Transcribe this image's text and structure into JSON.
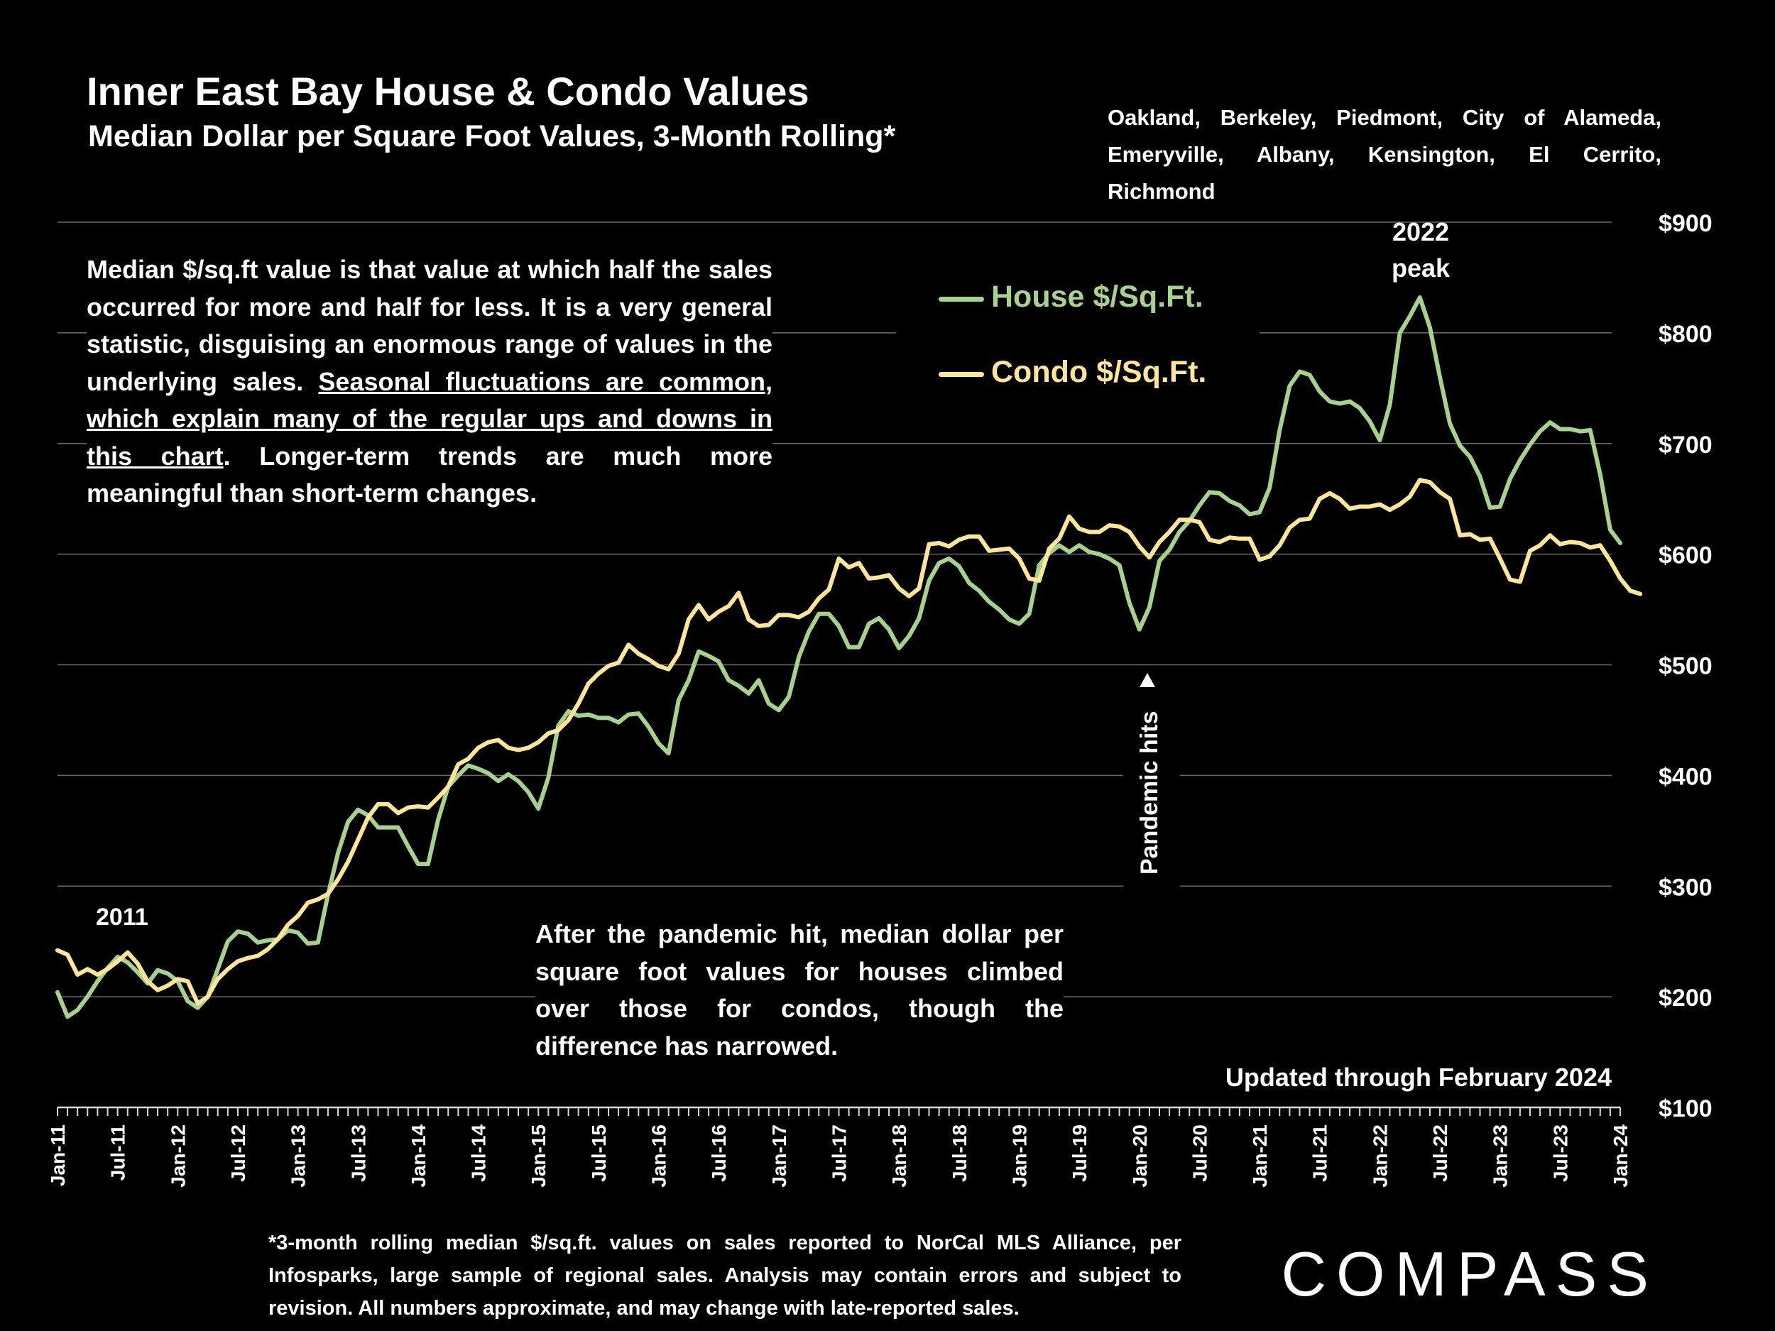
{
  "header": {
    "title": "Inner East Bay House & Condo Values",
    "subtitle": "Median Dollar per Square Foot Values, 3-Month Rolling*",
    "region_line1": "Oakland, Berkeley, Piedmont, City of Alameda,",
    "region_line2": "Emeryville, Albany, Kensington, El Cerrito, Richmond"
  },
  "notes": {
    "box1_part1": "Median $/sq.ft value is that value at which half the sales occurred for more and half for less. It is a very general statistic, disguising an enormous range of values in the underlying sales. ",
    "box1_underlined": "Seasonal fluctuations are common, which explain many of the regular ups and downs in this chart",
    "box1_part2": ". Longer-term trends are much more meaningful than short-term changes.",
    "box2": "After the pandemic hit, median dollar per square foot values for houses climbed over those for condos, though the difference has narrowed.",
    "updated": "Updated through February 2024",
    "footnote": "*3-month rolling median $/sq.ft. values on sales reported to NorCal MLS Alliance, per Infosparks, large sample of regional sales. Analysis may contain errors and subject to revision. All numbers approximate, and may change with late-reported sales.",
    "brand": "COMPASS"
  },
  "legend": {
    "house_label": "House $/Sq.Ft.",
    "condo_label": "Condo $/Sq.Ft."
  },
  "colors": {
    "background": "#000000",
    "house": "#a9d18e",
    "condo": "#ffe699",
    "text": "#ffffff",
    "grid": "#6b6b6b"
  },
  "chart_data": {
    "type": "line",
    "title": "Inner East Bay House & Condo Values",
    "xlabel": "",
    "ylabel": "",
    "ylim": [
      100,
      900
    ],
    "y_ticks": [
      "$100",
      "$200",
      "$300",
      "$400",
      "$500",
      "$600",
      "$700",
      "$800",
      "$900"
    ],
    "y_tick_values": [
      100,
      200,
      300,
      400,
      500,
      600,
      700,
      800,
      900
    ],
    "x_tick_labels": [
      "Jan-11",
      "Jul-11",
      "Jan-12",
      "Jul-12",
      "Jan-13",
      "Jul-13",
      "Jan-14",
      "Jul-14",
      "Jan-15",
      "Jul-15",
      "Jan-16",
      "Jul-16",
      "Jan-17",
      "Jul-17",
      "Jan-18",
      "Jul-18",
      "Jan-19",
      "Jul-19",
      "Jan-20",
      "Jul-20",
      "Jan-21",
      "Jul-21",
      "Jan-22",
      "Jul-22",
      "Jan-23",
      "Jul-23",
      "Jan-24"
    ],
    "x_start": "Jan-11",
    "x_end": "Feb-24",
    "grid": true,
    "series": [
      {
        "name": "House $/Sq.Ft.",
        "values": [
          204,
          182,
          188,
          200,
          214,
          226,
          236,
          231,
          222,
          212,
          224,
          221,
          214,
          196,
          190,
          200,
          225,
          250,
          259,
          257,
          249,
          251,
          252,
          260,
          258,
          248,
          249,
          292,
          330,
          358,
          369,
          364,
          353,
          353,
          353,
          336,
          320,
          320,
          360,
          390,
          400,
          409,
          406,
          402,
          395,
          401,
          395,
          385,
          370,
          398,
          445,
          458,
          454,
          455,
          452,
          452,
          448,
          455,
          456,
          444,
          429,
          420,
          468,
          486,
          512,
          508,
          503,
          486,
          481,
          474,
          486,
          465,
          459,
          471,
          507,
          530,
          546,
          546,
          535,
          516,
          516,
          537,
          542,
          532,
          515,
          526,
          542,
          576,
          592,
          596,
          589,
          574,
          567,
          557,
          550,
          541,
          537,
          546,
          590,
          601,
          608,
          602,
          608,
          602,
          600,
          596,
          590,
          556,
          532,
          552,
          594,
          604,
          620,
          630,
          644,
          656,
          655,
          648,
          644,
          636,
          638,
          660,
          712,
          752,
          765,
          762,
          747,
          738,
          736,
          738,
          732,
          720,
          703,
          735,
          800,
          815,
          832,
          805,
          760,
          718,
          698,
          688,
          670,
          642,
          643,
          668,
          685,
          699,
          711,
          719,
          713,
          713,
          711,
          712,
          672,
          622,
          610
        ],
        "sample_months": "Jan-11 through Feb-24, monthly"
      },
      {
        "name": "Condo $/Sq.Ft.",
        "values": [
          242,
          238,
          220,
          225,
          220,
          225,
          232,
          240,
          230,
          214,
          206,
          210,
          216,
          214,
          194,
          200,
          216,
          225,
          232,
          235,
          237,
          243,
          252,
          265,
          273,
          285,
          288,
          293,
          306,
          322,
          342,
          362,
          374,
          374,
          366,
          371,
          372,
          371,
          380,
          390,
          410,
          415,
          425,
          430,
          432,
          425,
          423,
          425,
          430,
          438,
          441,
          450,
          465,
          483,
          492,
          499,
          502,
          518,
          510,
          505,
          499,
          496,
          510,
          541,
          554,
          541,
          548,
          553,
          565,
          541,
          535,
          536,
          545,
          545,
          543,
          548,
          560,
          568,
          596,
          588,
          592,
          578,
          579,
          581,
          569,
          562,
          569,
          609,
          610,
          607,
          613,
          616,
          616,
          603,
          604,
          605,
          596,
          578,
          576,
          605,
          614,
          634,
          623,
          620,
          620,
          626,
          625,
          620,
          607,
          597,
          611,
          620,
          631,
          631,
          629,
          613,
          611,
          615,
          614,
          614,
          595,
          598,
          608,
          624,
          631,
          632,
          650,
          655,
          650,
          641,
          643,
          643,
          645,
          640,
          645,
          652,
          667,
          665,
          656,
          650,
          617,
          618,
          613,
          614,
          596,
          577,
          575,
          603,
          608,
          617,
          609,
          611,
          610,
          606,
          608,
          594,
          578,
          567,
          564
        ],
        "sample_months": "Jan-11 through Feb-24, monthly"
      }
    ],
    "annotations": {
      "year_2011": "2011",
      "peak_line1": "2022",
      "peak_line2": "peak",
      "pandemic": "Pandemic hits"
    }
  }
}
